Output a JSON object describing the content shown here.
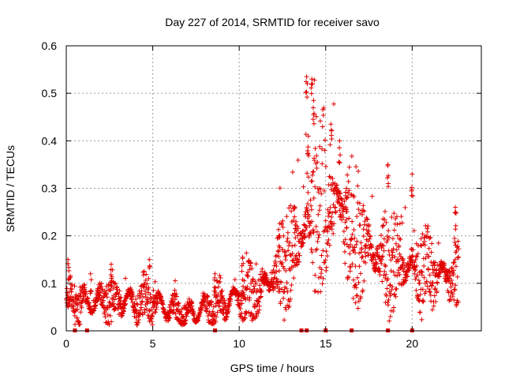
{
  "chart_data": {
    "type": "scatter",
    "title": "Day 227 of 2014, SRMTID for receiver savo",
    "xlabel": "GPS time / hours",
    "ylabel": "SRMTID / TECUs",
    "xlim": [
      0,
      24
    ],
    "ylim": [
      0,
      0.6
    ],
    "xticks": [
      0,
      5,
      10,
      15,
      20
    ],
    "yticks": [
      0,
      0.1,
      0.2,
      0.3,
      0.4,
      0.5,
      0.6
    ],
    "xtick_labels": [
      "0",
      "5",
      "10",
      "15",
      "20"
    ],
    "ytick_labels": [
      "0",
      "0.1",
      "0.2",
      "0.3",
      "0.4",
      "0.5",
      "0.6"
    ],
    "grid": true,
    "marker": "+",
    "color": "#e00000",
    "baseline_trend": [
      [
        0,
        0.06
      ],
      [
        1,
        0.055
      ],
      [
        2,
        0.065
      ],
      [
        3,
        0.07
      ],
      [
        4,
        0.06
      ],
      [
        5,
        0.06
      ],
      [
        6,
        0.045
      ],
      [
        7,
        0.035
      ],
      [
        8,
        0.045
      ],
      [
        9,
        0.06
      ],
      [
        10,
        0.07
      ],
      [
        11,
        0.075
      ],
      [
        12,
        0.12
      ],
      [
        13,
        0.16
      ],
      [
        13.8,
        0.22
      ],
      [
        14.5,
        0.26
      ],
      [
        15.5,
        0.27
      ],
      [
        16.5,
        0.22
      ],
      [
        17.5,
        0.17
      ],
      [
        18.5,
        0.15
      ],
      [
        19.5,
        0.14
      ],
      [
        20.5,
        0.13
      ],
      [
        21.5,
        0.12
      ],
      [
        22.7,
        0.11
      ]
    ],
    "peaks": [
      [
        0.1,
        0.15
      ],
      [
        1.4,
        0.12
      ],
      [
        2.6,
        0.14
      ],
      [
        4.8,
        0.15
      ],
      [
        8.6,
        0.12
      ],
      [
        10.2,
        0.155
      ],
      [
        12.3,
        0.2
      ],
      [
        13.2,
        0.24
      ],
      [
        13.9,
        0.535
      ],
      [
        14.2,
        0.53
      ],
      [
        14.3,
        0.485
      ],
      [
        14.0,
        0.41
      ],
      [
        15.3,
        0.435
      ],
      [
        15.8,
        0.4
      ],
      [
        16.2,
        0.3
      ],
      [
        18.6,
        0.35
      ],
      [
        20.0,
        0.33
      ],
      [
        22.5,
        0.26
      ]
    ],
    "zero_markers_x": [
      0.5,
      1.2,
      8.6,
      13.6,
      13.9,
      15.0,
      16.5,
      18.6,
      20.0
    ]
  }
}
